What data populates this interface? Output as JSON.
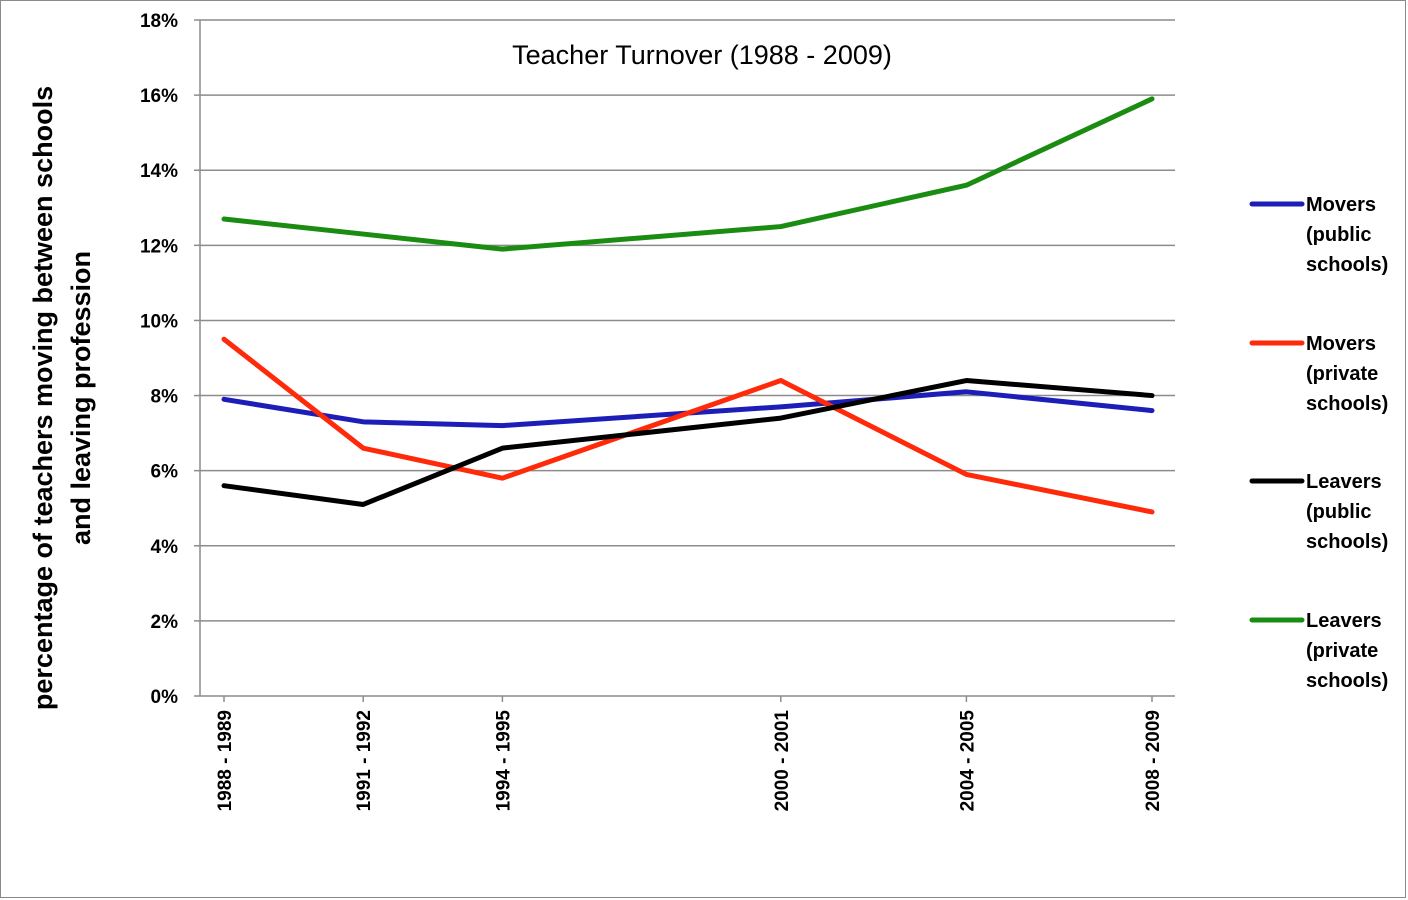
{
  "chart_data": {
    "type": "line",
    "title": "Teacher Turnover (1988 - 2009)",
    "ylabel_lines": [
      "percentage of teachers moving between schools",
      "and leaving profession"
    ],
    "xlabel": "",
    "x": [
      "1988 - 1989",
      "1991 - 1992",
      "1994 - 1995",
      "2000 - 2001",
      "2004 - 2005",
      "2008 - 2009"
    ],
    "x_positions": [
      1988.5,
      1991.5,
      1994.5,
      2000.5,
      2004.5,
      2008.5
    ],
    "ylim": [
      0,
      18
    ],
    "yticks": [
      0,
      2,
      4,
      6,
      8,
      10,
      12,
      14,
      16,
      18
    ],
    "ytick_labels": [
      "0%",
      "2%",
      "4%",
      "6%",
      "8%",
      "10%",
      "12%",
      "14%",
      "16%",
      "18%"
    ],
    "grid": true,
    "legend_position": "right",
    "series": [
      {
        "name": "Movers (public schools)",
        "legend_lines": [
          "Movers",
          "(public",
          "schools)"
        ],
        "color": "#1d1db8",
        "values": [
          7.9,
          7.3,
          7.2,
          7.7,
          8.1,
          7.6
        ]
      },
      {
        "name": "Movers (private schools)",
        "legend_lines": [
          "Movers",
          "(private",
          "schools)"
        ],
        "color": "#ff2a0a",
        "values": [
          9.5,
          6.6,
          5.8,
          8.4,
          5.9,
          4.9
        ]
      },
      {
        "name": "Leavers (public schools)",
        "legend_lines": [
          "Leavers",
          "(public",
          "schools)"
        ],
        "color": "#000000",
        "values": [
          5.6,
          5.1,
          6.6,
          7.4,
          8.4,
          8.0
        ]
      },
      {
        "name": "Leavers (private schools)",
        "legend_lines": [
          "Leavers",
          "(private",
          "schools)"
        ],
        "color": "#1a8c12",
        "values": [
          12.7,
          12.3,
          11.9,
          12.5,
          13.6,
          15.9
        ]
      }
    ]
  }
}
